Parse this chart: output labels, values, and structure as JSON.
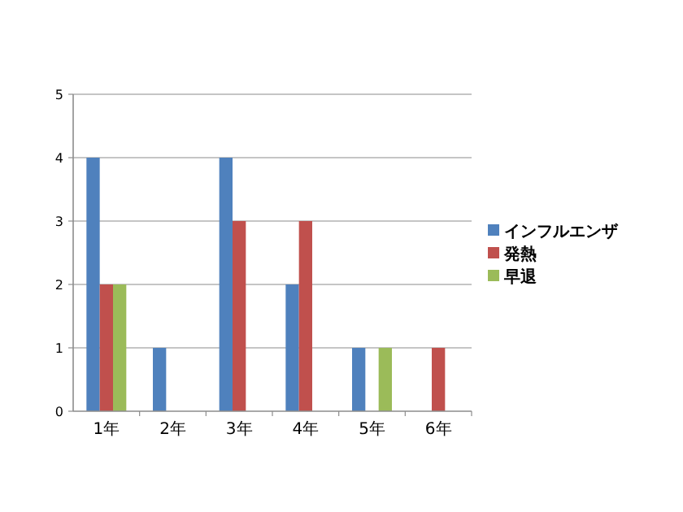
{
  "chart_data": {
    "type": "bar",
    "categories": [
      "1年",
      "2年",
      "3年",
      "4年",
      "5年",
      "6年"
    ],
    "series": [
      {
        "name": "インフルエンザ",
        "color": "#4f81bd",
        "values": [
          4,
          1,
          4,
          2,
          1,
          null
        ]
      },
      {
        "name": "発熱",
        "color": "#c0504d",
        "values": [
          2,
          null,
          3,
          3,
          null,
          1
        ]
      },
      {
        "name": "早退",
        "color": "#9bbb59",
        "values": [
          2,
          null,
          null,
          null,
          1,
          null
        ]
      }
    ],
    "ylim": [
      0,
      5
    ],
    "yticks": [
      0,
      1,
      2,
      3,
      4,
      5
    ],
    "grid": "y",
    "legend": "right"
  }
}
